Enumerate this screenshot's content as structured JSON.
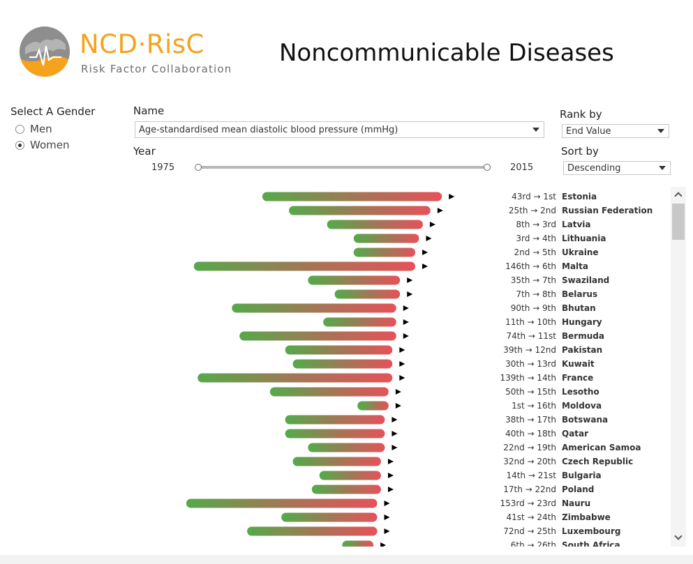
{
  "header": {
    "logo_text": "NCD·RisC",
    "logo_subtitle": "Risk Factor Collaboration",
    "title": "Noncommunicable Diseases"
  },
  "gender": {
    "label": "Select A Gender",
    "options": [
      "Men",
      "Women"
    ],
    "selected": "Women"
  },
  "name_filter": {
    "label": "Name",
    "value": "Age-standardised mean diastolic blood pressure (mmHg)"
  },
  "year": {
    "label": "Year",
    "start": "1975",
    "end": "2015"
  },
  "rank_by": {
    "label": "Rank by",
    "value": "End Value"
  },
  "sort_by": {
    "label": "Sort by",
    "value": "Descending"
  },
  "colors": {
    "start": "#5aa64b",
    "end": "#e5525a",
    "arrow": "#000000"
  },
  "chart_data": {
    "type": "bar",
    "description_units": "mmHg",
    "rows": [
      {
        "rank": "43rd → 1st",
        "country": "Estonia",
        "start": 75.7,
        "end": 80.3
      },
      {
        "rank": "25th → 2nd",
        "country": "Russian Federation",
        "start": 76.4,
        "end": 80.0
      },
      {
        "rank": "8th → 3rd",
        "country": "Latvia",
        "start": 77.4,
        "end": 79.8
      },
      {
        "rank": "3rd → 4th",
        "country": "Lithuania",
        "start": 78.1,
        "end": 79.7
      },
      {
        "rank": "2nd → 5th",
        "country": "Ukraine",
        "start": 78.1,
        "end": 79.6
      },
      {
        "rank": "146th → 6th",
        "country": "Malta",
        "start": 73.9,
        "end": 79.6
      },
      {
        "rank": "35th → 7th",
        "country": "Swaziland",
        "start": 76.9,
        "end": 79.2
      },
      {
        "rank": "7th → 8th",
        "country": "Belarus",
        "start": 77.6,
        "end": 79.2
      },
      {
        "rank": "90th → 9th",
        "country": "Bhutan",
        "start": 74.9,
        "end": 79.1
      },
      {
        "rank": "11th → 10th",
        "country": "Hungary",
        "start": 77.3,
        "end": 79.1
      },
      {
        "rank": "74th → 11st",
        "country": "Bermuda",
        "start": 75.1,
        "end": 79.1
      },
      {
        "rank": "39th → 12nd",
        "country": "Pakistan",
        "start": 76.3,
        "end": 79.0
      },
      {
        "rank": "30th → 13rd",
        "country": "Kuwait",
        "start": 76.5,
        "end": 79.0
      },
      {
        "rank": "139th → 14th",
        "country": "France",
        "start": 74.0,
        "end": 79.0
      },
      {
        "rank": "50th → 15th",
        "country": "Lesotho",
        "start": 75.9,
        "end": 78.9
      },
      {
        "rank": "1st → 16th",
        "country": "Moldova",
        "start": 78.2,
        "end": 78.9
      },
      {
        "rank": "38th → 17th",
        "country": "Botswana",
        "start": 76.3,
        "end": 78.8
      },
      {
        "rank": "40th → 18th",
        "country": "Qatar",
        "start": 76.3,
        "end": 78.8
      },
      {
        "rank": "22nd → 19th",
        "country": "American Samoa",
        "start": 76.9,
        "end": 78.8
      },
      {
        "rank": "32nd → 20th",
        "country": "Czech Republic",
        "start": 76.5,
        "end": 78.7
      },
      {
        "rank": "14th → 21st",
        "country": "Bulgaria",
        "start": 77.2,
        "end": 78.7
      },
      {
        "rank": "17th → 22nd",
        "country": "Poland",
        "start": 77.0,
        "end": 78.7
      },
      {
        "rank": "153rd → 23rd",
        "country": "Nauru",
        "start": 73.7,
        "end": 78.6
      },
      {
        "rank": "41st → 24th",
        "country": "Zimbabwe",
        "start": 76.2,
        "end": 78.6
      },
      {
        "rank": "72nd → 25th",
        "country": "Luxembourg",
        "start": 75.3,
        "end": 78.6
      },
      {
        "rank": "6th → 26th",
        "country": "South Africa",
        "start": 77.8,
        "end": 78.5
      }
    ]
  }
}
